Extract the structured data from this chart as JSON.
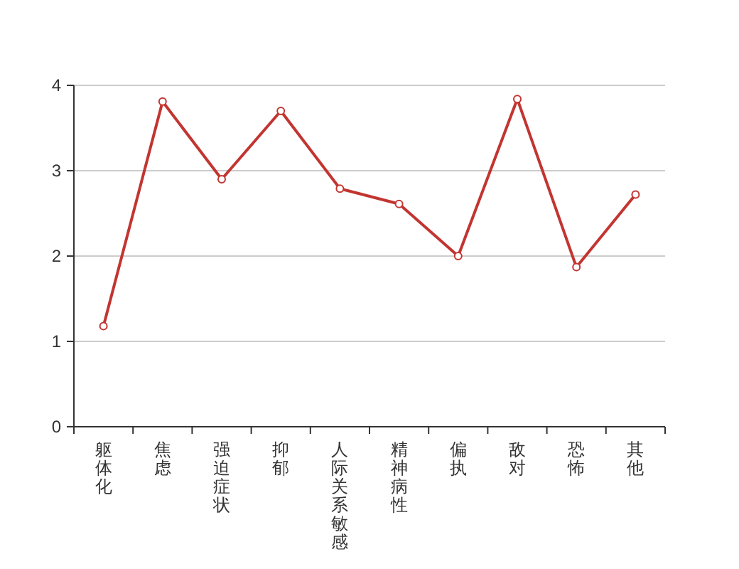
{
  "chart_data": {
    "type": "line",
    "categories": [
      "躯体化",
      "焦虑",
      "强迫症状",
      "抑郁",
      "人际关系敏感",
      "精神病性",
      "偏执",
      "敌对",
      "恐怖",
      "其他"
    ],
    "series": [
      {
        "color": "#c23531",
        "values": [
          1.18,
          3.81,
          2.9,
          3.7,
          2.79,
          2.61,
          2.0,
          3.84,
          1.87,
          2.72
        ]
      }
    ],
    "ylim": [
      0,
      4
    ],
    "yticks": [
      0,
      1,
      2,
      3,
      4
    ],
    "grid": "y",
    "marker": "circle",
    "line_style": "solid"
  }
}
